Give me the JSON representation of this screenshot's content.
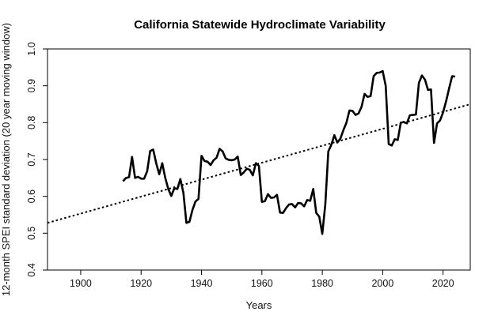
{
  "chart_data": {
    "type": "line",
    "title": "California Statewide Hydroclimate Variability",
    "xlabel": "Years",
    "ylabel": "12-month SPEI standard deviation (20 year moving window)",
    "xlim": [
      1889,
      2029
    ],
    "ylim": [
      0.4,
      1.0
    ],
    "xticks": [
      1900,
      1920,
      1940,
      1960,
      1980,
      2000,
      2020
    ],
    "yticks": [
      0.4,
      0.5,
      0.6,
      0.7,
      0.8,
      0.9,
      1.0
    ],
    "grid": false,
    "series": [
      {
        "name": "SPEI standard deviation",
        "style": "solid",
        "color": "#000000",
        "points": [
          [
            1914,
            0.641
          ],
          [
            1915,
            0.65
          ],
          [
            1916,
            0.652
          ],
          [
            1917,
            0.707
          ],
          [
            1918,
            0.65
          ],
          [
            1919,
            0.653
          ],
          [
            1920,
            0.648
          ],
          [
            1921,
            0.648
          ],
          [
            1922,
            0.668
          ],
          [
            1923,
            0.723
          ],
          [
            1924,
            0.727
          ],
          [
            1925,
            0.69
          ],
          [
            1926,
            0.66
          ],
          [
            1927,
            0.69
          ],
          [
            1928,
            0.65
          ],
          [
            1929,
            0.62
          ],
          [
            1930,
            0.601
          ],
          [
            1931,
            0.622
          ],
          [
            1932,
            0.62
          ],
          [
            1933,
            0.647
          ],
          [
            1934,
            0.61
          ],
          [
            1935,
            0.528
          ],
          [
            1936,
            0.531
          ],
          [
            1937,
            0.563
          ],
          [
            1938,
            0.586
          ],
          [
            1939,
            0.593
          ],
          [
            1940,
            0.71
          ],
          [
            1941,
            0.696
          ],
          [
            1942,
            0.694
          ],
          [
            1943,
            0.685
          ],
          [
            1944,
            0.698
          ],
          [
            1945,
            0.705
          ],
          [
            1946,
            0.729
          ],
          [
            1947,
            0.722
          ],
          [
            1948,
            0.703
          ],
          [
            1949,
            0.699
          ],
          [
            1950,
            0.698
          ],
          [
            1951,
            0.7
          ],
          [
            1952,
            0.708
          ],
          [
            1953,
            0.658
          ],
          [
            1954,
            0.665
          ],
          [
            1955,
            0.675
          ],
          [
            1956,
            0.672
          ],
          [
            1957,
            0.657
          ],
          [
            1958,
            0.69
          ],
          [
            1959,
            0.683
          ],
          [
            1960,
            0.585
          ],
          [
            1961,
            0.587
          ],
          [
            1962,
            0.606
          ],
          [
            1963,
            0.596
          ],
          [
            1964,
            0.597
          ],
          [
            1965,
            0.604
          ],
          [
            1966,
            0.556
          ],
          [
            1967,
            0.555
          ],
          [
            1968,
            0.568
          ],
          [
            1969,
            0.578
          ],
          [
            1970,
            0.579
          ],
          [
            1971,
            0.57
          ],
          [
            1972,
            0.582
          ],
          [
            1973,
            0.581
          ],
          [
            1974,
            0.573
          ],
          [
            1975,
            0.59
          ],
          [
            1976,
            0.588
          ],
          [
            1977,
            0.62
          ],
          [
            1978,
            0.555
          ],
          [
            1979,
            0.545
          ],
          [
            1980,
            0.498
          ],
          [
            1981,
            0.578
          ],
          [
            1982,
            0.722
          ],
          [
            1983,
            0.74
          ],
          [
            1984,
            0.766
          ],
          [
            1985,
            0.746
          ],
          [
            1986,
            0.757
          ],
          [
            1987,
            0.78
          ],
          [
            1988,
            0.8
          ],
          [
            1989,
            0.833
          ],
          [
            1990,
            0.832
          ],
          [
            1991,
            0.821
          ],
          [
            1992,
            0.825
          ],
          [
            1993,
            0.843
          ],
          [
            1994,
            0.878
          ],
          [
            1995,
            0.87
          ],
          [
            1996,
            0.872
          ],
          [
            1997,
            0.926
          ],
          [
            1998,
            0.935
          ],
          [
            1999,
            0.936
          ],
          [
            2000,
            0.94
          ],
          [
            2001,
            0.9
          ],
          [
            2002,
            0.742
          ],
          [
            2003,
            0.738
          ],
          [
            2004,
            0.755
          ],
          [
            2005,
            0.753
          ],
          [
            2006,
            0.8
          ],
          [
            2007,
            0.802
          ],
          [
            2008,
            0.798
          ],
          [
            2009,
            0.82
          ],
          [
            2010,
            0.821
          ],
          [
            2011,
            0.822
          ],
          [
            2012,
            0.908
          ],
          [
            2013,
            0.928
          ],
          [
            2014,
            0.917
          ],
          [
            2015,
            0.889
          ],
          [
            2016,
            0.89
          ],
          [
            2017,
            0.745
          ],
          [
            2018,
            0.798
          ],
          [
            2019,
            0.806
          ],
          [
            2020,
            0.828
          ],
          [
            2021,
            0.858
          ],
          [
            2022,
            0.893
          ],
          [
            2023,
            0.926
          ],
          [
            2024,
            0.925
          ]
        ]
      },
      {
        "name": "Linear trend",
        "style": "dotted",
        "color": "#000000",
        "points": [
          [
            1889,
            0.528
          ],
          [
            2029,
            0.85
          ]
        ]
      }
    ]
  }
}
